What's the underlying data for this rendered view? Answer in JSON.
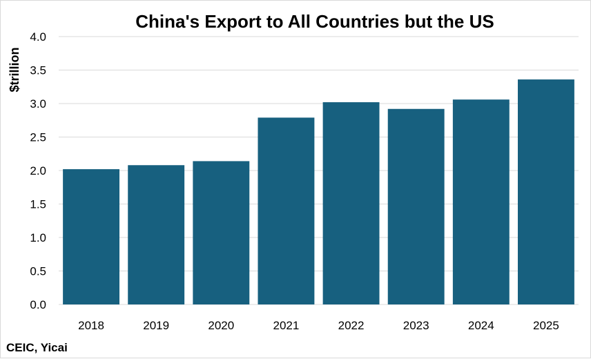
{
  "chart_data": {
    "type": "bar",
    "title": "China's Export to All Countries but the US",
    "xlabel": "",
    "ylabel": "$trillion",
    "categories": [
      "2018",
      "2019",
      "2020",
      "2021",
      "2022",
      "2023",
      "2024",
      "2025"
    ],
    "values": [
      2.02,
      2.08,
      2.14,
      2.79,
      3.02,
      2.92,
      3.06,
      3.36
    ],
    "ylim": [
      0,
      4.0
    ],
    "yticks": [
      "0.0",
      "0.5",
      "1.0",
      "1.5",
      "2.0",
      "2.5",
      "3.0",
      "3.5",
      "4.0"
    ],
    "grid": true,
    "legend": "none",
    "source": "CEIC, Yicai",
    "colors": {
      "bar": "#17607f",
      "grid": "#d9d9d9",
      "axis": "#d9d9d9"
    }
  }
}
